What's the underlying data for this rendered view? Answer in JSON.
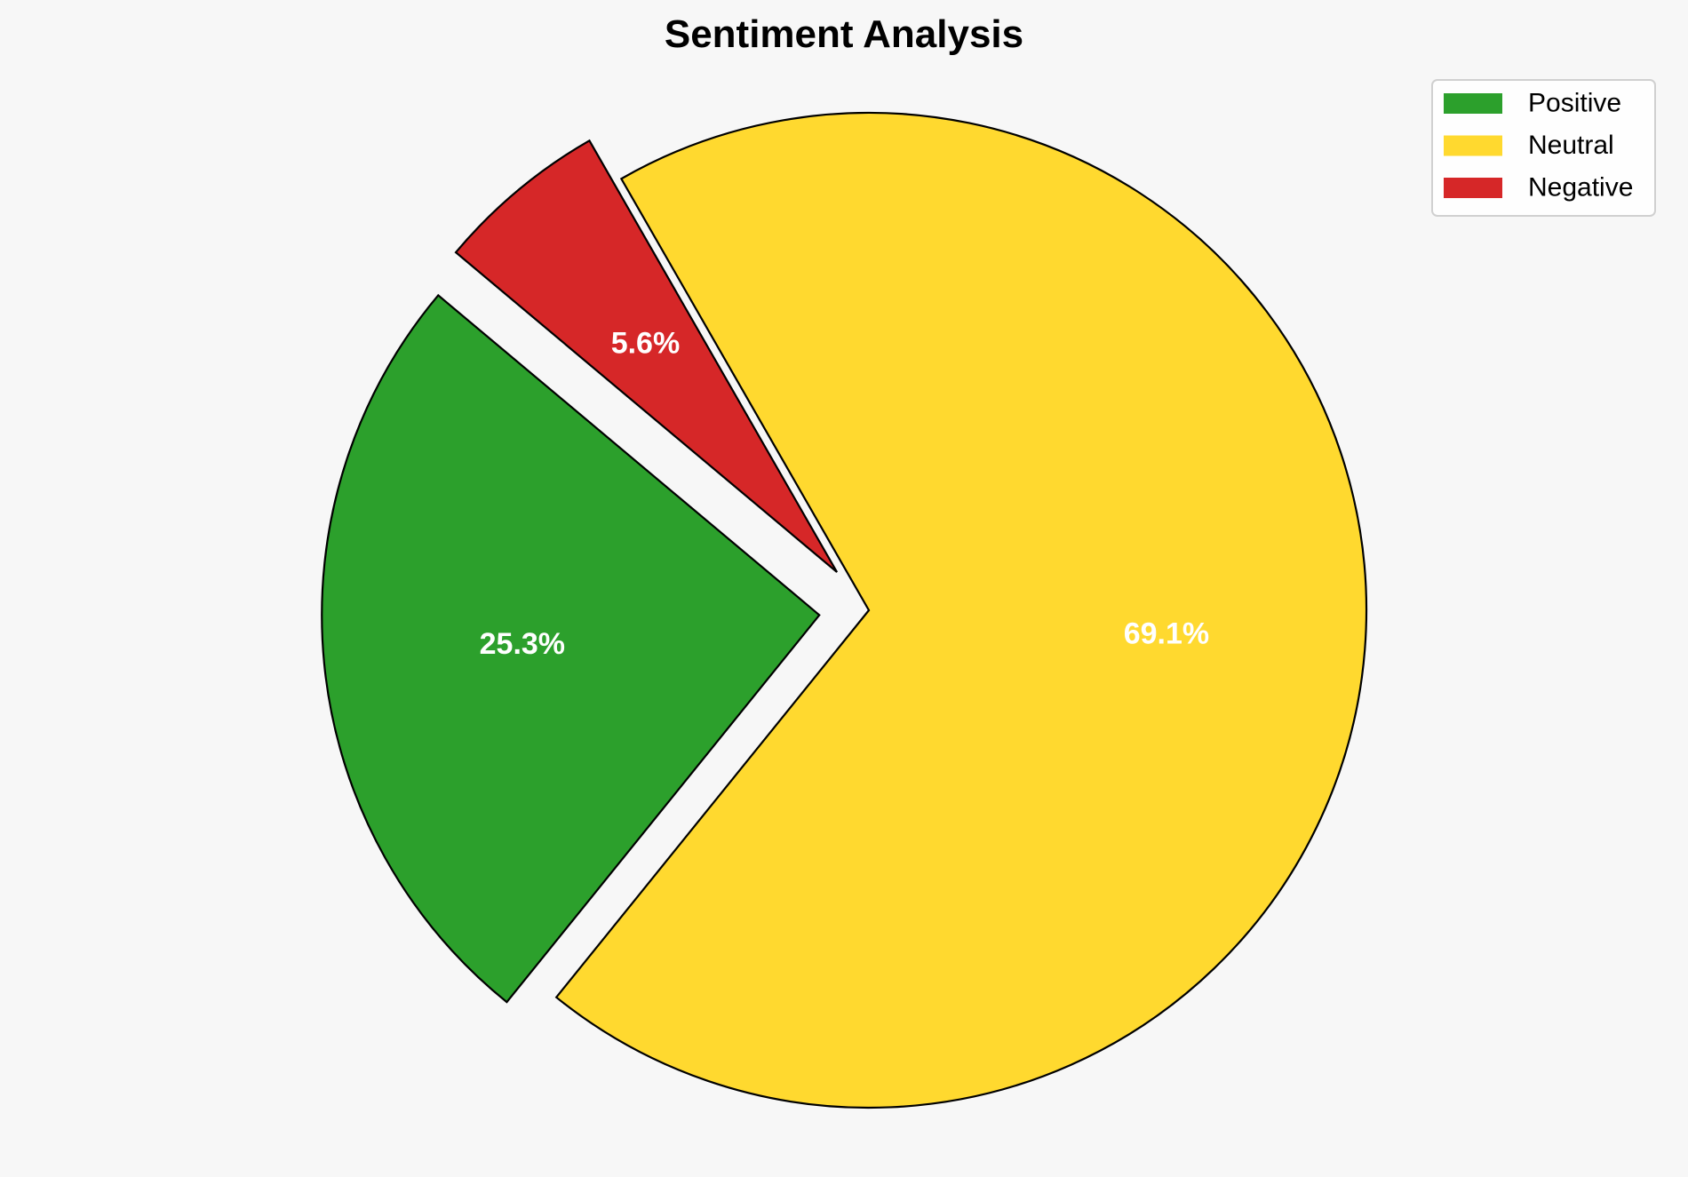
{
  "chart_data": {
    "type": "pie",
    "title": "Sentiment Analysis",
    "categories": [
      "Positive",
      "Neutral",
      "Negative"
    ],
    "values": [
      25.3,
      69.1,
      5.6
    ],
    "labels": [
      "25.3%",
      "69.1%",
      "5.6%"
    ],
    "colors": [
      "#2ca02c",
      "#ffd92f",
      "#d62728"
    ],
    "explode": [
      0.1,
      0,
      0.1
    ],
    "startangle": 140,
    "legend": {
      "position": "top-right",
      "entries": [
        "Positive",
        "Neutral",
        "Negative"
      ]
    },
    "edgecolor": "#000000"
  }
}
